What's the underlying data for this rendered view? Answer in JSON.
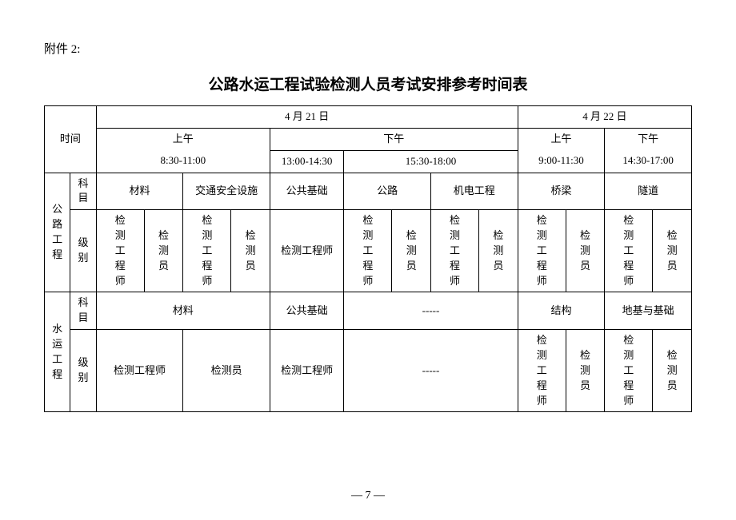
{
  "attachment": "附件 2:",
  "title": "公路水运工程试验检测人员考试安排参考时间表",
  "page": "— 7 —",
  "header": {
    "timeLabel": "时间",
    "day1": "4 月 21 日",
    "day2": "4 月 22 日",
    "d1Morning": "上午",
    "d1MorningTime": "8:30-11:00",
    "d1Afternoon": "下午",
    "d1AftTime1": "13:00-14:30",
    "d1AftTime2": "15:30-18:00",
    "d2Morning": "上午",
    "d2MorningTime": "9:00-11:30",
    "d2Afternoon": "下午",
    "d2AfternoonTime": "14:30-17:00"
  },
  "rowLabels": {
    "road": "公路工程",
    "water": "水运工程",
    "subject": "科目",
    "level": "级别"
  },
  "road": {
    "subjects": {
      "materials": "材料",
      "trafficSafety": "交通安全设施",
      "publicBasics": "公共基础",
      "highway": "公路",
      "electromech": "机电工程",
      "bridge": "桥梁",
      "tunnel": "隧道"
    },
    "levels": {
      "engineer": "检测工程师",
      "inspector": "检测员"
    }
  },
  "water": {
    "subjects": {
      "materials": "材料",
      "publicBasics": "公共基础",
      "dash": "-----",
      "structure": "结构",
      "foundation": "地基与基础"
    },
    "levels": {
      "engineer": "检测工程师",
      "inspector": "检测员",
      "dash": "-----"
    }
  }
}
